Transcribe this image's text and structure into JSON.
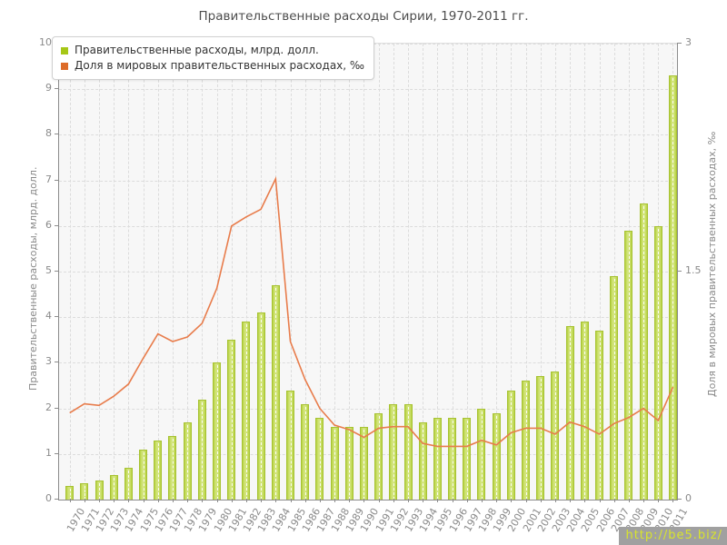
{
  "title": "Правительственные расходы Сирии, 1970-2011 гг.",
  "watermark": {
    "url": "http://be5.biz/"
  },
  "colors": {
    "bar_fill": "#c6dc5e",
    "bar_border": "#a7c232",
    "line": "#e87c4b",
    "legend_bar_swatch": "#a6c716",
    "legend_line_swatch": "#dd6b28",
    "plot_background": "#f7f7f7",
    "grid": "#dcdcdc",
    "axis_text": "#8a8a8a"
  },
  "chart_data": {
    "type": "bar",
    "title": "Правительственные расходы Сирии, 1970-2011 гг.",
    "grid": true,
    "legend_position": "top-left",
    "categories": [
      "1970",
      "1971",
      "1972",
      "1973",
      "1974",
      "1975",
      "1976",
      "1977",
      "1978",
      "1979",
      "1980",
      "1981",
      "1982",
      "1983",
      "1984",
      "1985",
      "1986",
      "1987",
      "1988",
      "1989",
      "1990",
      "1991",
      "1992",
      "1993",
      "1994",
      "1995",
      "1996",
      "1997",
      "1998",
      "1999",
      "2000",
      "2001",
      "2002",
      "2003",
      "2004",
      "2005",
      "2006",
      "2007",
      "2008",
      "2009",
      "2010",
      "2011"
    ],
    "series": [
      {
        "name": "Правительственные расходы, млрд. долл.",
        "type": "bar",
        "axis": "left",
        "values": [
          0.3,
          0.35,
          0.42,
          0.53,
          0.7,
          1.1,
          1.3,
          1.4,
          1.7,
          2.2,
          3.0,
          3.5,
          3.9,
          4.1,
          4.7,
          2.4,
          2.1,
          1.8,
          1.6,
          1.6,
          1.6,
          1.9,
          2.1,
          2.1,
          1.7,
          1.8,
          1.8,
          1.8,
          2.0,
          1.9,
          2.4,
          2.6,
          2.7,
          2.8,
          3.8,
          3.9,
          3.7,
          4.9,
          5.9,
          6.5,
          6.0,
          9.3
        ]
      },
      {
        "name": "Доля в мировых правительственных расходах, ‰",
        "type": "line",
        "axis": "right",
        "values": [
          0.57,
          0.63,
          0.62,
          0.68,
          0.76,
          0.93,
          1.09,
          1.04,
          1.07,
          1.16,
          1.39,
          1.8,
          1.86,
          1.91,
          2.11,
          1.04,
          0.79,
          0.6,
          0.49,
          0.46,
          0.41,
          0.47,
          0.48,
          0.48,
          0.37,
          0.35,
          0.35,
          0.35,
          0.39,
          0.36,
          0.44,
          0.47,
          0.47,
          0.43,
          0.51,
          0.48,
          0.43,
          0.5,
          0.54,
          0.6,
          0.52,
          0.74
        ]
      }
    ],
    "left_axis": {
      "label": "Правительственные расходы, млрд. долл.",
      "min": 0,
      "max": 10,
      "ticks": [
        0,
        1,
        2,
        3,
        4,
        5,
        6,
        7,
        8,
        9,
        10
      ]
    },
    "right_axis": {
      "label": "Доля в мировых правительственных расходах, ‰",
      "min": 0,
      "max": 3,
      "ticks": [
        0,
        1.5,
        3
      ],
      "tick_labels": [
        "0",
        "1.5",
        "3"
      ]
    }
  }
}
